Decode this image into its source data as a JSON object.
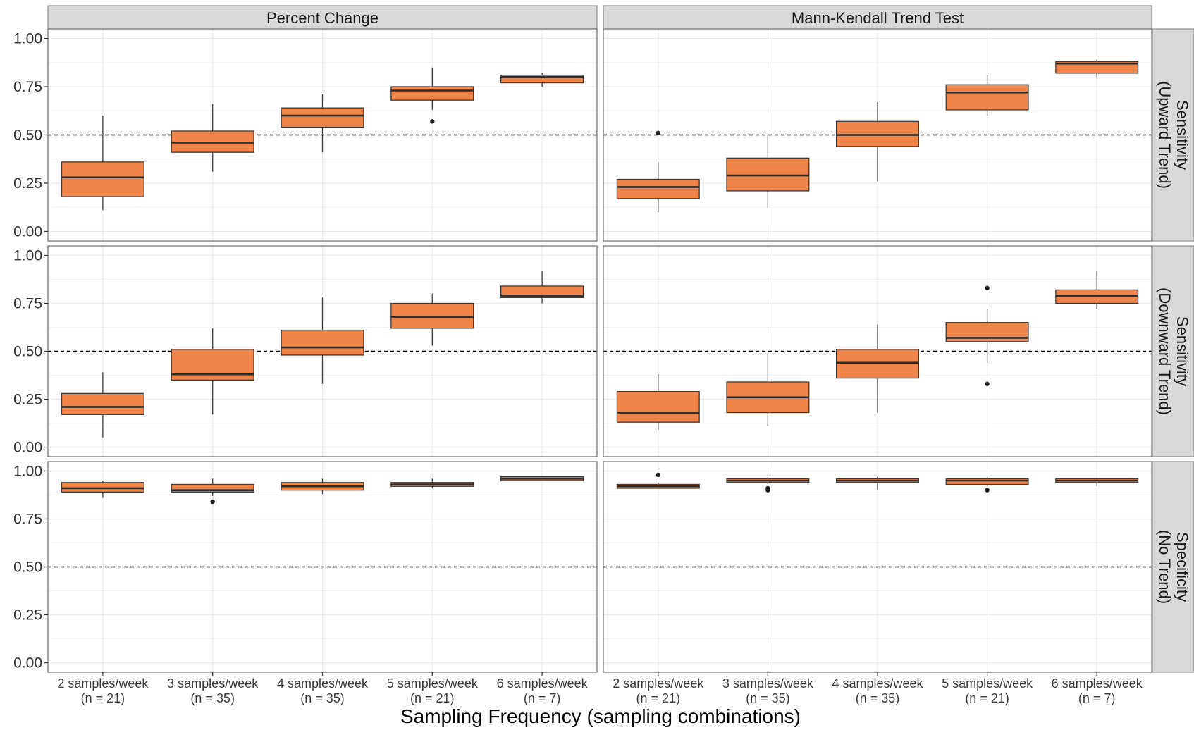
{
  "chart_data": {
    "type": "boxplot",
    "x_axis_title": "Sampling Frequency (sampling combinations)",
    "facet_columns": [
      "Percent Change",
      "Mann-Kendall Trend Test"
    ],
    "facet_rows": [
      [
        "Sensitivity",
        "(Upward Trend)"
      ],
      [
        "Sensitivity",
        "(Downward Trend)"
      ],
      [
        "Specificity",
        "(No Trend)"
      ]
    ],
    "categories": [
      [
        "2 samples/week",
        "(n = 21)"
      ],
      [
        "3 samples/week",
        "(n = 35)"
      ],
      [
        "4 samples/week",
        "(n = 35)"
      ],
      [
        "5 samples/week",
        "(n = 21)"
      ],
      [
        "6 samples/week",
        "(n = 7)"
      ]
    ],
    "y_ticks": [
      "0.00",
      "0.25",
      "0.50",
      "0.75",
      "1.00"
    ],
    "ylim": [
      0,
      1.0
    ],
    "reference_line": 0.5,
    "grid": true,
    "colors": {
      "box_fill": "#F0854A",
      "box_line": "#3a3a3a",
      "strip_bg": "#D9D9D9",
      "grid": "#EBEBEB"
    },
    "panels": [
      {
        "row": 0,
        "col": 0,
        "boxes": [
          {
            "q1": 0.18,
            "median": 0.28,
            "q3": 0.36,
            "lo": 0.11,
            "hi": 0.6,
            "outliers": []
          },
          {
            "q1": 0.41,
            "median": 0.46,
            "q3": 0.52,
            "lo": 0.31,
            "hi": 0.66,
            "outliers": []
          },
          {
            "q1": 0.54,
            "median": 0.6,
            "q3": 0.64,
            "lo": 0.41,
            "hi": 0.71,
            "outliers": []
          },
          {
            "q1": 0.68,
            "median": 0.73,
            "q3": 0.75,
            "lo": 0.63,
            "hi": 0.85,
            "outliers": [
              0.57
            ]
          },
          {
            "q1": 0.77,
            "median": 0.8,
            "q3": 0.81,
            "lo": 0.75,
            "hi": 0.82,
            "outliers": []
          }
        ]
      },
      {
        "row": 0,
        "col": 1,
        "boxes": [
          {
            "q1": 0.17,
            "median": 0.23,
            "q3": 0.27,
            "lo": 0.1,
            "hi": 0.36,
            "outliers": [
              0.51
            ]
          },
          {
            "q1": 0.21,
            "median": 0.29,
            "q3": 0.38,
            "lo": 0.12,
            "hi": 0.5,
            "outliers": []
          },
          {
            "q1": 0.44,
            "median": 0.5,
            "q3": 0.57,
            "lo": 0.26,
            "hi": 0.67,
            "outliers": []
          },
          {
            "q1": 0.63,
            "median": 0.72,
            "q3": 0.76,
            "lo": 0.6,
            "hi": 0.81,
            "outliers": []
          },
          {
            "q1": 0.82,
            "median": 0.87,
            "q3": 0.88,
            "lo": 0.8,
            "hi": 0.89,
            "outliers": []
          }
        ]
      },
      {
        "row": 1,
        "col": 0,
        "boxes": [
          {
            "q1": 0.17,
            "median": 0.21,
            "q3": 0.28,
            "lo": 0.05,
            "hi": 0.39,
            "outliers": []
          },
          {
            "q1": 0.35,
            "median": 0.38,
            "q3": 0.51,
            "lo": 0.17,
            "hi": 0.62,
            "outliers": []
          },
          {
            "q1": 0.48,
            "median": 0.52,
            "q3": 0.61,
            "lo": 0.33,
            "hi": 0.78,
            "outliers": []
          },
          {
            "q1": 0.62,
            "median": 0.68,
            "q3": 0.75,
            "lo": 0.53,
            "hi": 0.8,
            "outliers": []
          },
          {
            "q1": 0.78,
            "median": 0.79,
            "q3": 0.84,
            "lo": 0.75,
            "hi": 0.92,
            "outliers": []
          }
        ]
      },
      {
        "row": 1,
        "col": 1,
        "boxes": [
          {
            "q1": 0.13,
            "median": 0.18,
            "q3": 0.29,
            "lo": 0.09,
            "hi": 0.38,
            "outliers": []
          },
          {
            "q1": 0.18,
            "median": 0.26,
            "q3": 0.34,
            "lo": 0.11,
            "hi": 0.49,
            "outliers": []
          },
          {
            "q1": 0.36,
            "median": 0.44,
            "q3": 0.51,
            "lo": 0.18,
            "hi": 0.64,
            "outliers": []
          },
          {
            "q1": 0.55,
            "median": 0.57,
            "q3": 0.65,
            "lo": 0.44,
            "hi": 0.72,
            "outliers": [
              0.83,
              0.33
            ]
          },
          {
            "q1": 0.75,
            "median": 0.79,
            "q3": 0.82,
            "lo": 0.72,
            "hi": 0.92,
            "outliers": []
          }
        ]
      },
      {
        "row": 2,
        "col": 0,
        "boxes": [
          {
            "q1": 0.89,
            "median": 0.91,
            "q3": 0.94,
            "lo": 0.86,
            "hi": 0.95,
            "outliers": []
          },
          {
            "q1": 0.89,
            "median": 0.9,
            "q3": 0.93,
            "lo": 0.87,
            "hi": 0.96,
            "outliers": [
              0.84
            ]
          },
          {
            "q1": 0.9,
            "median": 0.92,
            "q3": 0.94,
            "lo": 0.88,
            "hi": 0.96,
            "outliers": []
          },
          {
            "q1": 0.92,
            "median": 0.93,
            "q3": 0.94,
            "lo": 0.91,
            "hi": 0.96,
            "outliers": []
          },
          {
            "q1": 0.95,
            "median": 0.96,
            "q3": 0.97,
            "lo": 0.95,
            "hi": 0.97,
            "outliers": []
          }
        ]
      },
      {
        "row": 2,
        "col": 1,
        "boxes": [
          {
            "q1": 0.91,
            "median": 0.92,
            "q3": 0.93,
            "lo": 0.91,
            "hi": 0.94,
            "outliers": [
              0.98
            ]
          },
          {
            "q1": 0.94,
            "median": 0.95,
            "q3": 0.96,
            "lo": 0.93,
            "hi": 0.97,
            "outliers": [
              0.91,
              0.9
            ]
          },
          {
            "q1": 0.94,
            "median": 0.95,
            "q3": 0.96,
            "lo": 0.9,
            "hi": 0.97,
            "outliers": []
          },
          {
            "q1": 0.93,
            "median": 0.95,
            "q3": 0.96,
            "lo": 0.92,
            "hi": 0.97,
            "outliers": [
              0.9
            ]
          },
          {
            "q1": 0.94,
            "median": 0.95,
            "q3": 0.96,
            "lo": 0.92,
            "hi": 0.96,
            "outliers": []
          }
        ]
      }
    ]
  }
}
